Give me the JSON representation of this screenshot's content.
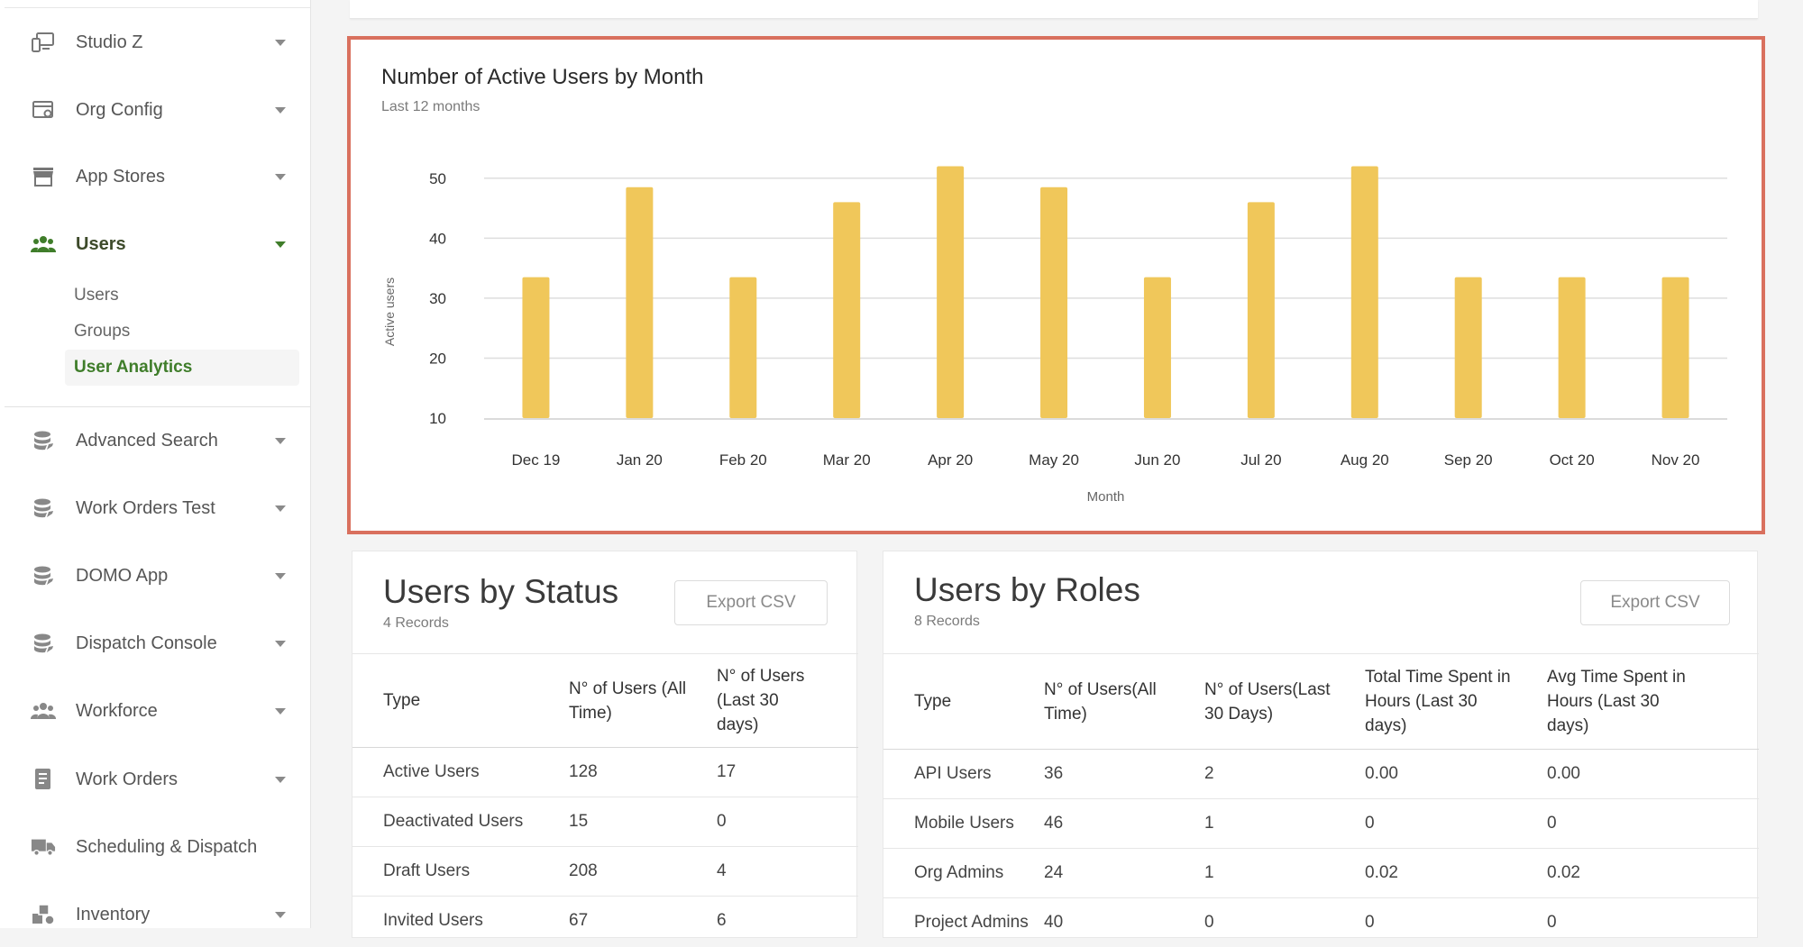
{
  "sidebar": {
    "items": [
      {
        "label": "Studio Z",
        "icon": "devices-icon"
      },
      {
        "label": "Org Config",
        "icon": "window-gear-icon"
      },
      {
        "label": "App Stores",
        "icon": "store-icon"
      },
      {
        "label": "Users",
        "icon": "users-icon"
      },
      {
        "label": "Advanced Search",
        "icon": "database-icon"
      },
      {
        "label": "Work Orders Test",
        "icon": "database-icon"
      },
      {
        "label": "DOMO App",
        "icon": "database-icon"
      },
      {
        "label": "Dispatch Console",
        "icon": "database-icon"
      },
      {
        "label": "Workforce",
        "icon": "users-icon"
      },
      {
        "label": "Work Orders",
        "icon": "document-icon"
      },
      {
        "label": "Scheduling & Dispatch",
        "icon": "truck-icon"
      },
      {
        "label": "Inventory",
        "icon": "boxes-icon"
      }
    ],
    "users_sub": [
      "Users",
      "Groups",
      "User Analytics"
    ],
    "accent": "#3f7d2a"
  },
  "active_chart": {
    "title": "Number of Active Users by Month",
    "subtitle": "Last 12 months"
  },
  "chart_data": {
    "type": "bar",
    "title": "Number of Active Users by Month",
    "subtitle": "Last 12 months",
    "xlabel": "Month",
    "ylabel": "Active users",
    "categories": [
      "Dec 19",
      "Jan 20",
      "Feb 20",
      "Mar 20",
      "Apr 20",
      "May 20",
      "Jun 20",
      "Jul 20",
      "Aug 20",
      "Sep 20",
      "Oct 20",
      "Nov 20"
    ],
    "values": [
      33.5,
      48.5,
      33.5,
      46,
      52,
      48.5,
      33.5,
      46,
      52,
      33.5,
      33.5,
      33.5
    ],
    "yticks": [
      10,
      20,
      30,
      40,
      50
    ],
    "ylim": [
      10,
      52
    ],
    "grid": true,
    "bar_color": "#f0c75a"
  },
  "status_card": {
    "title": "Users by Status",
    "count": "4 Records",
    "export_label": "Export CSV",
    "headers": [
      "Type",
      "N° of Users (All Time)",
      "N° of Users (Last 30 days)"
    ],
    "rows": [
      [
        "Active Users",
        "128",
        "17"
      ],
      [
        "Deactivated Users",
        "15",
        "0"
      ],
      [
        "Draft Users",
        "208",
        "4"
      ],
      [
        "Invited Users",
        "67",
        "6"
      ]
    ]
  },
  "roles_card": {
    "title": "Users by Roles",
    "count": "8 Records",
    "export_label": "Export CSV",
    "headers": [
      "Type",
      "N° of Users(All Time)",
      "N° of Users(Last 30 Days)",
      "Total Time Spent in Hours (Last 30 days)",
      "Avg Time Spent in Hours (Last 30 days)"
    ],
    "rows": [
      [
        "API Users",
        "36",
        "2",
        "0.00",
        "0.00"
      ],
      [
        "Mobile Users",
        "46",
        "1",
        "0",
        "0"
      ],
      [
        "Org Admins",
        "24",
        "1",
        "0.02",
        "0.02"
      ],
      [
        "Project Admins",
        "40",
        "0",
        "0",
        "0"
      ]
    ]
  }
}
